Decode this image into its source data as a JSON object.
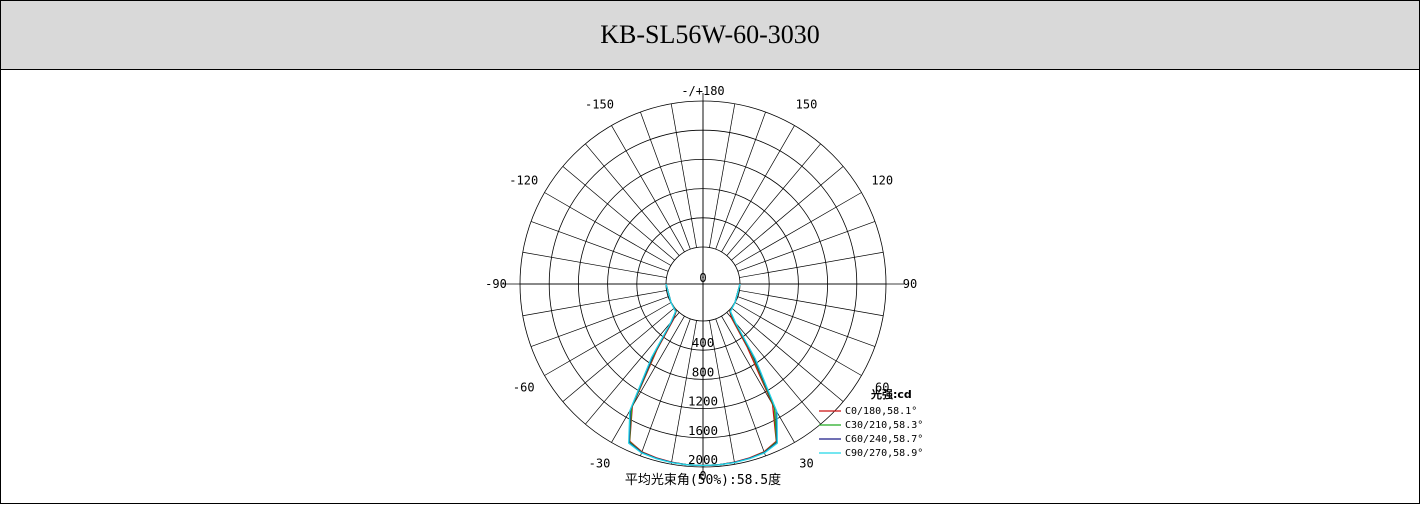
{
  "title": "KB-SL56W-60-3030",
  "chart_data": {
    "type": "polar",
    "angle_labels": [
      "0",
      "30",
      "60",
      "90",
      "120",
      "150",
      "-/+180",
      "-150",
      "-120",
      "-90",
      "-60",
      "-30"
    ],
    "radial_labels": [
      "0",
      "400",
      "800",
      "1200",
      "1600",
      "2000"
    ],
    "radial_max": 2000,
    "unit_label": "光强:cd",
    "series": [
      {
        "name": "C0/180,58.1°",
        "color": "#cc1111",
        "angles": [
          -90,
          -60,
          -45,
          -40,
          -35,
          -30,
          -25,
          -20,
          -15,
          -10,
          -5,
          0,
          5,
          10,
          15,
          20,
          25,
          30,
          35,
          40,
          45,
          60,
          90
        ],
        "values": [
          0,
          0,
          10,
          120,
          600,
          1430,
          1870,
          1940,
          1960,
          1970,
          1980,
          1980,
          1980,
          1970,
          1960,
          1940,
          1870,
          1400,
          550,
          100,
          10,
          0,
          0
        ]
      },
      {
        "name": "C30/210,58.3°",
        "color": "#22aa22",
        "angles": [
          -90,
          -60,
          -45,
          -40,
          -35,
          -30,
          -25,
          -20,
          -15,
          -10,
          -5,
          0,
          5,
          10,
          15,
          20,
          25,
          30,
          35,
          40,
          45,
          60,
          90
        ],
        "values": [
          0,
          0,
          15,
          150,
          650,
          1450,
          1880,
          1945,
          1965,
          1975,
          1980,
          1980,
          1980,
          1975,
          1965,
          1945,
          1880,
          1450,
          650,
          150,
          15,
          0,
          0
        ]
      },
      {
        "name": "C60/240,58.7°",
        "color": "#1a1a88",
        "angles": [
          -90,
          -60,
          -45,
          -40,
          -35,
          -30,
          -25,
          -20,
          -15,
          -10,
          -5,
          0,
          5,
          10,
          15,
          20,
          25,
          30,
          35,
          40,
          45,
          60,
          90
        ],
        "values": [
          0,
          0,
          20,
          160,
          680,
          1480,
          1890,
          1950,
          1965,
          1975,
          1980,
          1980,
          1980,
          1975,
          1965,
          1950,
          1890,
          1500,
          700,
          170,
          20,
          0,
          0
        ]
      },
      {
        "name": "C90/270,58.9°",
        "color": "#22d6e6",
        "angles": [
          -90,
          -60,
          -45,
          -40,
          -35,
          -30,
          -25,
          -20,
          -15,
          -10,
          -5,
          0,
          5,
          10,
          15,
          20,
          25,
          30,
          35,
          40,
          45,
          60,
          90
        ],
        "values": [
          0,
          0,
          25,
          180,
          720,
          1500,
          1900,
          1955,
          1970,
          1978,
          1980,
          1980,
          1980,
          1978,
          1970,
          1955,
          1900,
          1520,
          740,
          190,
          25,
          0,
          0
        ]
      }
    ],
    "footer": "平均光束角(50%):58.5度"
  }
}
